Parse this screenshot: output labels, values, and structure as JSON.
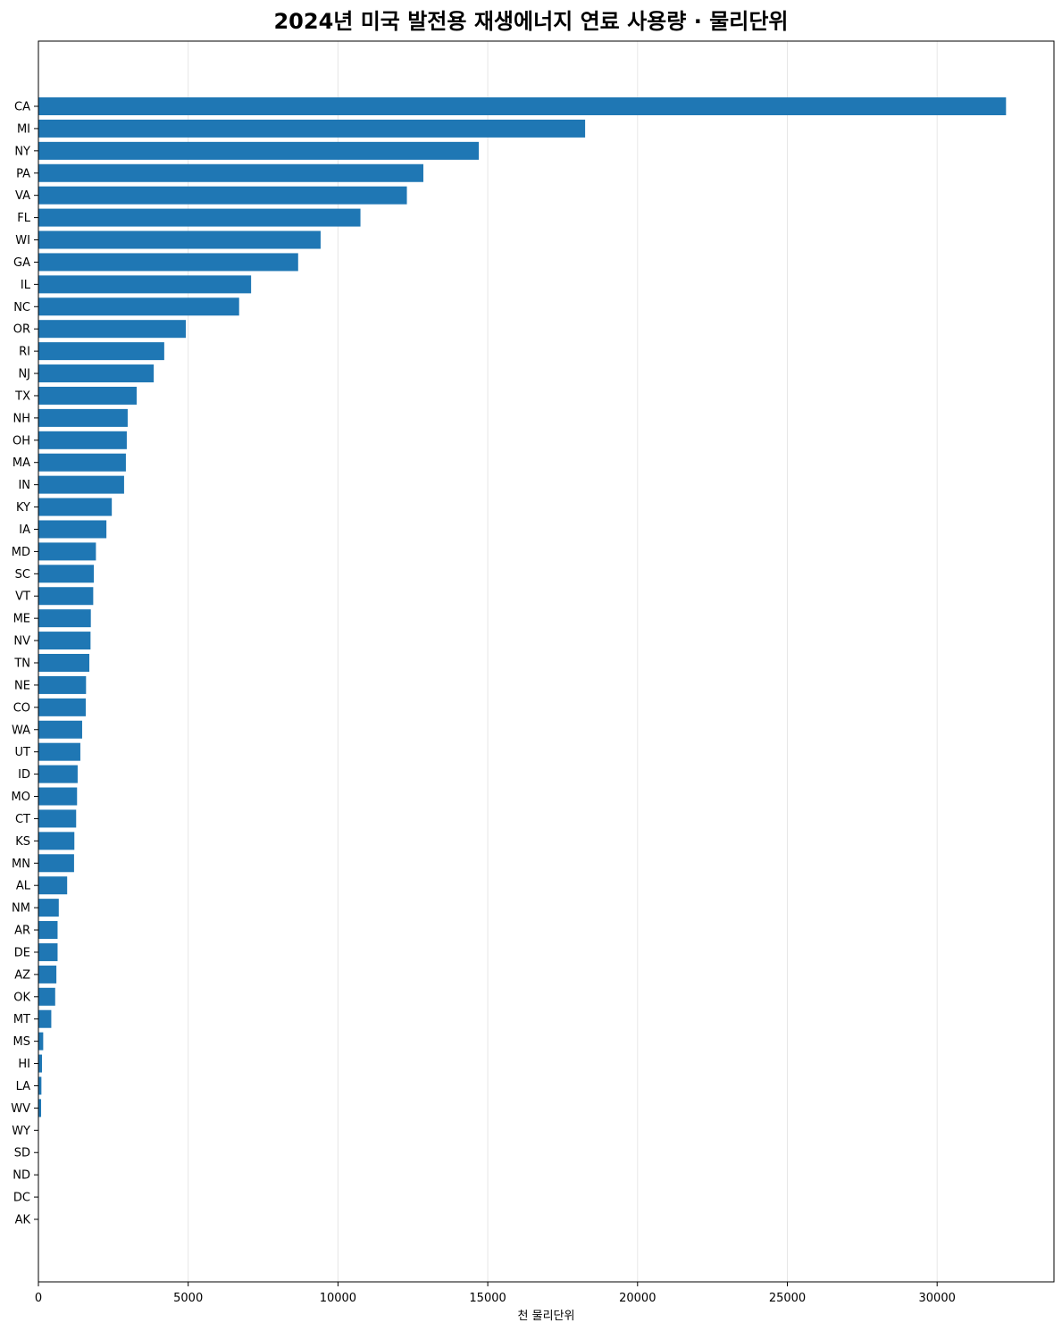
{
  "chart_data": {
    "type": "bar",
    "orientation": "horizontal",
    "title": "2024년 미국 발전용 재생에너지 연료 사용량 · 물리단위",
    "xlabel": "천 물리단위",
    "ylabel": "",
    "xlim": [
      0,
      33900
    ],
    "xticks": [
      0,
      5000,
      10000,
      15000,
      20000,
      25000,
      30000
    ],
    "grid": "vertical",
    "bar_color": "#1f77b4",
    "grid_color": "#e6e6e6",
    "categories": [
      "CA",
      "MI",
      "NY",
      "PA",
      "VA",
      "FL",
      "WI",
      "GA",
      "IL",
      "NC",
      "OR",
      "RI",
      "NJ",
      "TX",
      "NH",
      "OH",
      "MA",
      "IN",
      "KY",
      "IA",
      "MD",
      "SC",
      "VT",
      "ME",
      "NV",
      "TN",
      "NE",
      "CO",
      "WA",
      "UT",
      "ID",
      "MO",
      "CT",
      "KS",
      "MN",
      "AL",
      "NM",
      "AR",
      "DE",
      "AZ",
      "OK",
      "MT",
      "MS",
      "HI",
      "LA",
      "WV",
      "WY",
      "SD",
      "ND",
      "DC",
      "AK"
    ],
    "values": [
      32300,
      18250,
      14700,
      12850,
      12300,
      10750,
      9420,
      8670,
      7100,
      6700,
      4920,
      4200,
      3850,
      3280,
      2980,
      2950,
      2920,
      2860,
      2450,
      2270,
      1920,
      1850,
      1830,
      1750,
      1740,
      1700,
      1590,
      1580,
      1460,
      1400,
      1310,
      1290,
      1260,
      1200,
      1190,
      960,
      680,
      640,
      640,
      600,
      560,
      430,
      160,
      120,
      100,
      90,
      15,
      10,
      8,
      5,
      3
    ]
  }
}
